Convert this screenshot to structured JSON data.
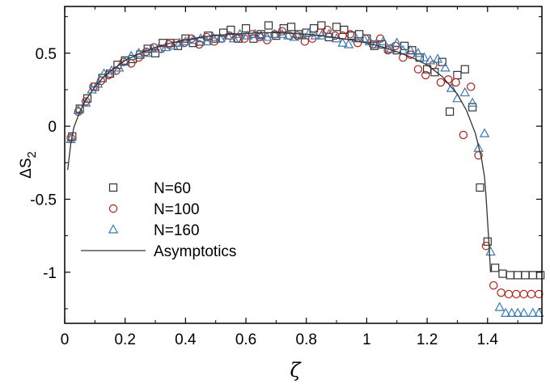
{
  "chart_data": {
    "type": "scatter",
    "title": "",
    "xlabel": "ζ",
    "ylabel": "ΔS",
    "ylabel_sub": "2",
    "xlim": [
      0,
      1.58
    ],
    "ylim": [
      -1.35,
      0.82
    ],
    "xticks": [
      0,
      0.2,
      0.4,
      0.6,
      0.8,
      1,
      1.2,
      1.4
    ],
    "xtick_labels": [
      "0",
      "0.2",
      "0.4",
      "0.6",
      "0.8",
      "1",
      "1.2",
      "1.4"
    ],
    "yticks": [
      0.5,
      0,
      -0.5,
      -1
    ],
    "ytick_labels": [
      "0.5",
      "0",
      "-0.5",
      "-1"
    ],
    "legend_position": "center-left",
    "series": [
      {
        "name": "N=60",
        "marker": "square",
        "color": "#333333",
        "x": [
          0.025,
          0.05,
          0.075,
          0.1,
          0.125,
          0.15,
          0.175,
          0.2,
          0.225,
          0.25,
          0.275,
          0.3,
          0.325,
          0.35,
          0.375,
          0.4,
          0.425,
          0.45,
          0.475,
          0.5,
          0.525,
          0.55,
          0.575,
          0.6,
          0.625,
          0.65,
          0.675,
          0.7,
          0.725,
          0.75,
          0.775,
          0.8,
          0.825,
          0.85,
          0.875,
          0.9,
          0.925,
          0.95,
          0.975,
          1.0,
          1.025,
          1.05,
          1.075,
          1.1,
          1.125,
          1.15,
          1.175,
          1.2,
          1.225,
          1.25,
          1.275,
          1.3,
          1.325,
          1.35,
          1.375,
          1.4,
          1.425,
          1.45,
          1.475,
          1.5,
          1.525,
          1.55,
          1.575
        ],
        "y": [
          -0.07,
          0.12,
          0.19,
          0.27,
          0.33,
          0.36,
          0.42,
          0.45,
          0.46,
          0.49,
          0.53,
          0.5,
          0.57,
          0.57,
          0.55,
          0.6,
          0.57,
          0.58,
          0.62,
          0.6,
          0.64,
          0.66,
          0.6,
          0.67,
          0.6,
          0.63,
          0.69,
          0.62,
          0.67,
          0.68,
          0.63,
          0.64,
          0.67,
          0.69,
          0.61,
          0.68,
          0.66,
          0.62,
          0.63,
          0.6,
          0.55,
          0.56,
          0.53,
          0.52,
          0.55,
          0.52,
          0.47,
          0.39,
          0.37,
          0.44,
          0.1,
          0.35,
          0.39,
          0.13,
          -0.42,
          -0.79,
          -0.97,
          -1.01,
          -1.02,
          -1.02,
          -1.02,
          -1.02,
          -1.02
        ]
      },
      {
        "name": "N=100",
        "marker": "circle",
        "color": "#b22018",
        "x": [
          0.02,
          0.045,
          0.07,
          0.095,
          0.12,
          0.145,
          0.17,
          0.195,
          0.22,
          0.245,
          0.27,
          0.295,
          0.32,
          0.345,
          0.37,
          0.395,
          0.42,
          0.445,
          0.47,
          0.495,
          0.52,
          0.545,
          0.57,
          0.595,
          0.62,
          0.645,
          0.67,
          0.695,
          0.72,
          0.745,
          0.77,
          0.795,
          0.82,
          0.845,
          0.87,
          0.895,
          0.92,
          0.945,
          0.97,
          0.995,
          1.02,
          1.045,
          1.07,
          1.095,
          1.12,
          1.145,
          1.17,
          1.195,
          1.22,
          1.245,
          1.27,
          1.295,
          1.32,
          1.345,
          1.37,
          1.395,
          1.42,
          1.445,
          1.47,
          1.495,
          1.52,
          1.545,
          1.57
        ],
        "y": [
          -0.08,
          0.1,
          0.17,
          0.27,
          0.31,
          0.35,
          0.38,
          0.44,
          0.43,
          0.47,
          0.51,
          0.54,
          0.53,
          0.56,
          0.57,
          0.57,
          0.6,
          0.56,
          0.61,
          0.58,
          0.6,
          0.62,
          0.6,
          0.6,
          0.63,
          0.61,
          0.59,
          0.63,
          0.65,
          0.62,
          0.62,
          0.58,
          0.6,
          0.64,
          0.66,
          0.62,
          0.62,
          0.63,
          0.57,
          0.6,
          0.56,
          0.6,
          0.52,
          0.55,
          0.47,
          0.49,
          0.39,
          0.35,
          0.42,
          0.3,
          0.32,
          0.3,
          -0.06,
          0.27,
          -0.2,
          -0.82,
          -1.09,
          -1.14,
          -1.15,
          -1.15,
          -1.15,
          -1.15,
          -1.15
        ]
      },
      {
        "name": "N=160",
        "marker": "triangle",
        "color": "#3a7ab0",
        "x": [
          0.02,
          0.045,
          0.07,
          0.09,
          0.11,
          0.13,
          0.155,
          0.18,
          0.2,
          0.22,
          0.245,
          0.27,
          0.29,
          0.31,
          0.335,
          0.36,
          0.38,
          0.4,
          0.425,
          0.45,
          0.47,
          0.49,
          0.515,
          0.54,
          0.56,
          0.58,
          0.605,
          0.63,
          0.65,
          0.67,
          0.695,
          0.72,
          0.74,
          0.76,
          0.785,
          0.81,
          0.83,
          0.85,
          0.875,
          0.9,
          0.92,
          0.94,
          0.965,
          0.99,
          1.01,
          1.03,
          1.055,
          1.08,
          1.1,
          1.12,
          1.145,
          1.17,
          1.19,
          1.21,
          1.235,
          1.26,
          1.28,
          1.3,
          1.325,
          1.35,
          1.37,
          1.39,
          1.41,
          1.44,
          1.46,
          1.48,
          1.5,
          1.52,
          1.55,
          1.57
        ],
        "y": [
          -0.09,
          0.11,
          0.16,
          0.25,
          0.29,
          0.36,
          0.38,
          0.4,
          0.44,
          0.48,
          0.5,
          0.5,
          0.53,
          0.53,
          0.54,
          0.55,
          0.57,
          0.58,
          0.59,
          0.6,
          0.58,
          0.61,
          0.6,
          0.62,
          0.6,
          0.63,
          0.62,
          0.63,
          0.62,
          0.61,
          0.63,
          0.63,
          0.62,
          0.61,
          0.62,
          0.64,
          0.62,
          0.62,
          0.63,
          0.6,
          0.57,
          0.56,
          0.6,
          0.6,
          0.58,
          0.56,
          0.58,
          0.53,
          0.57,
          0.52,
          0.52,
          0.5,
          0.47,
          0.45,
          0.46,
          0.4,
          0.26,
          0.19,
          0.23,
          0.16,
          -0.15,
          -0.05,
          -0.86,
          -1.24,
          -1.28,
          -1.28,
          -1.28,
          -1.28,
          -1.28,
          -1.28
        ]
      },
      {
        "name": "Asymptotics",
        "marker": "line",
        "color": "#333333",
        "x": [
          0.01,
          0.02,
          0.03,
          0.05,
          0.07,
          0.1,
          0.13,
          0.16,
          0.2,
          0.25,
          0.3,
          0.35,
          0.4,
          0.45,
          0.5,
          0.55,
          0.6,
          0.65,
          0.7,
          0.75,
          0.8,
          0.85,
          0.9,
          0.95,
          1.0,
          1.05,
          1.1,
          1.15,
          1.2,
          1.25,
          1.3,
          1.33,
          1.36,
          1.38,
          1.39,
          1.395,
          1.4,
          1.405,
          1.41
        ],
        "y": [
          -0.3,
          -0.12,
          -0.01,
          0.1,
          0.18,
          0.27,
          0.34,
          0.39,
          0.45,
          0.5,
          0.54,
          0.57,
          0.59,
          0.61,
          0.62,
          0.63,
          0.635,
          0.64,
          0.64,
          0.635,
          0.63,
          0.62,
          0.605,
          0.59,
          0.57,
          0.545,
          0.51,
          0.47,
          0.42,
          0.34,
          0.22,
          0.11,
          -0.05,
          -0.22,
          -0.35,
          -0.48,
          -0.65,
          -0.82,
          -1.0
        ]
      }
    ]
  }
}
